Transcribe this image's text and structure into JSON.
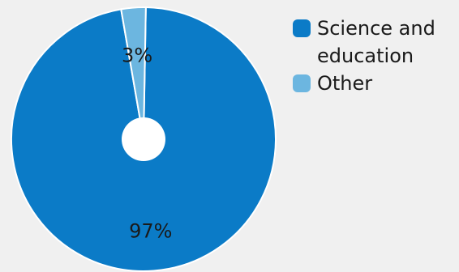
{
  "chart_data": {
    "type": "pie",
    "title": "",
    "legend_position": "right",
    "donut_hole": true,
    "slices": [
      {
        "name": "Science and education",
        "value": 97,
        "label": "97%",
        "color": "#0b7bc7"
      },
      {
        "name": "Other",
        "value": 3,
        "label": "3%",
        "color": "#6cb6e0"
      }
    ]
  },
  "legend": {
    "items": [
      {
        "label": "Science and education",
        "color": "#0b7bc7"
      },
      {
        "label": "Other",
        "color": "#6cb6e0"
      }
    ]
  },
  "colors": {
    "background": "#f0f0f0",
    "hole": "#ffffff",
    "slice_border": "#ffffff"
  }
}
